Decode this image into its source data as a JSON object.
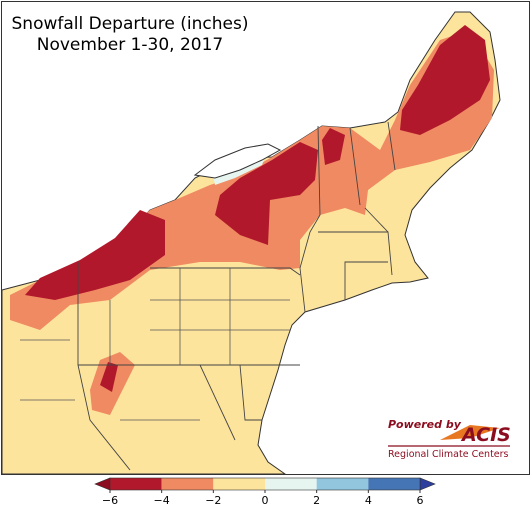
{
  "title": [
    "Snowfall Departure (inches)",
    "November 1-30, 2017"
  ],
  "colorbar": {
    "lim": [
      -6,
      6
    ],
    "ticks": [
      {
        "value": -6,
        "label": "−6"
      },
      {
        "value": -4,
        "label": "−4"
      },
      {
        "value": -2,
        "label": "−2"
      },
      0,
      2,
      4,
      6
    ],
    "colors": [
      "#b2182b",
      "#ef8a62",
      "#fde49c",
      "#e6f5f0",
      "#92c5de",
      "#4575b4"
    ],
    "under_color": "#8b0d1f",
    "over_color": "#2c3e9e"
  },
  "logo": {
    "powered_by": "Powered by",
    "name": "ACIS",
    "subtitle": "Regional Climate Centers"
  }
}
